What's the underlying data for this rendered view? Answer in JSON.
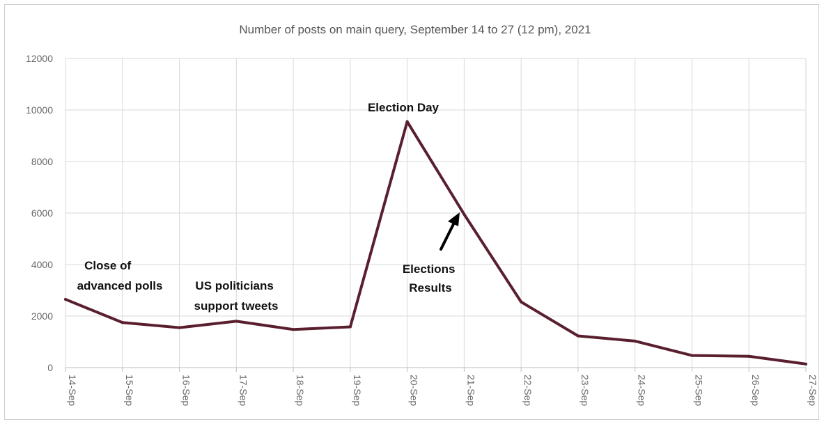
{
  "chart_data": {
    "type": "line",
    "title": "Number of posts on main query, September 14 to 27 (12 pm), 2021",
    "xlabel": "",
    "ylabel": "",
    "categories": [
      "14-Sep",
      "15-Sep",
      "16-Sep",
      "17-Sep",
      "18-Sep",
      "19-Sep",
      "20-Sep",
      "21-Sep",
      "22-Sep",
      "23-Sep",
      "24-Sep",
      "25-Sep",
      "26-Sep",
      "27-Sep"
    ],
    "values": [
      2650,
      1750,
      1550,
      1800,
      1480,
      1580,
      9550,
      5950,
      2550,
      1230,
      1030,
      470,
      440,
      140
    ],
    "ylim": [
      0,
      12000
    ],
    "yticks": [
      "0",
      "2000",
      "4000",
      "6000",
      "8000",
      "10000",
      "12000"
    ],
    "grid": true,
    "line_color": "#5a1f2e",
    "annotations": [
      {
        "id": "close-polls",
        "lines": [
          "Close of",
          "advanced polls"
        ]
      },
      {
        "id": "us-politicians",
        "lines": [
          "US politicians",
          "support tweets"
        ]
      },
      {
        "id": "election-day",
        "lines": [
          "Election Day"
        ]
      },
      {
        "id": "election-results",
        "lines": [
          "Elections",
          "Results"
        ]
      }
    ]
  }
}
